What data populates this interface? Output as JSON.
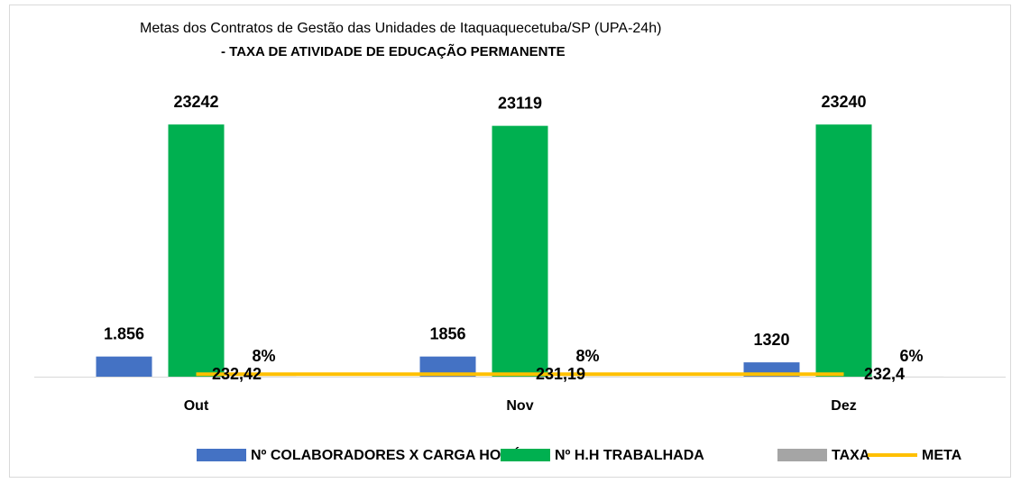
{
  "chart_data": {
    "type": "bar",
    "title": "Metas dos Contratos de Gestão das Unidades de Itaquaquecetuba/SP (UPA-24h)",
    "subtitle": "- TAXA DE ATIVIDADE DE EDUCAÇÃO PERMANENTE",
    "categories": [
      "Out",
      "Nov",
      "Dez"
    ],
    "ylim": [
      0,
      25000
    ],
    "series": [
      {
        "name": "Nº COLABORADORES X CARGA HORÁRIA",
        "color": "#4472c4",
        "values": [
          1856,
          1856,
          1320
        ],
        "value_labels": [
          "1.856",
          "1856",
          "1320"
        ]
      },
      {
        "name": "Nº H.H TRABALHADA",
        "color": "#00b050",
        "values": [
          23242,
          23119,
          23240
        ]
      },
      {
        "name": "TAXA",
        "color": "#a5a5a5",
        "values": [
          8,
          8,
          6
        ],
        "value_labels": [
          "8%",
          "8%",
          "6%"
        ]
      },
      {
        "name": "META",
        "color": "#ffc000",
        "type": "line",
        "values": [
          232.42,
          231.19,
          232.4
        ],
        "value_labels": [
          "232,42",
          "231,19",
          "232,4"
        ]
      }
    ]
  }
}
